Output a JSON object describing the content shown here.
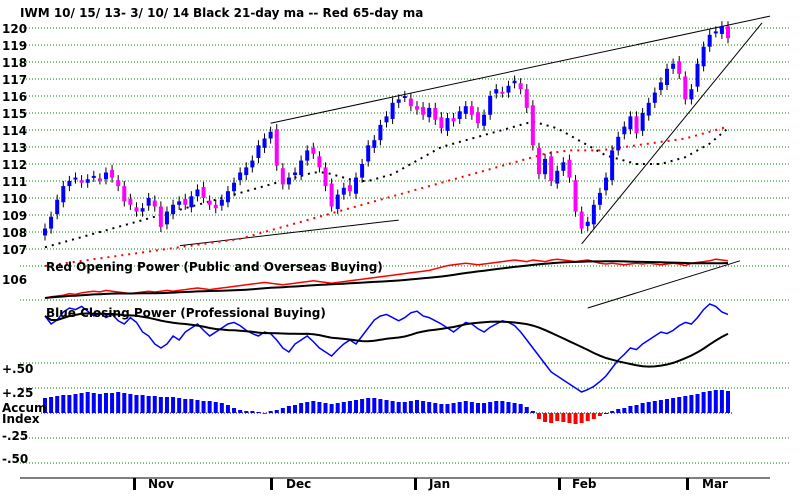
{
  "chart_data": {
    "type": "line",
    "title": "IWM   10/ 15/ 13- 3/ 10/ 14",
    "subtitle": "Black 21-day ma --  Red 65-day ma",
    "price_ticks": [
      "120",
      "119",
      "118",
      "117",
      "116",
      "115",
      "114",
      "113",
      "112",
      "111",
      "110",
      "109",
      "108",
      "107",
      "106"
    ],
    "price_ylim": [
      105.5,
      120.5
    ],
    "panel2_label": "Red Opening Power (Public and Overseas Buying)",
    "panel3_label": "Blue Closing Power (Professional Buying)",
    "accum_ticks": [
      "+.50",
      "+.25",
      "-.25",
      "-.50"
    ],
    "accum_label_1": "Accum",
    "accum_label_2": "Index",
    "months": [
      "Nov",
      "Dec",
      "Jan",
      "Feb",
      "Mar"
    ],
    "colors": {
      "up": "#0000ff",
      "down": "#ff00ff",
      "ma21": "#000000",
      "ma65": "#ff0000",
      "grid": "#008000",
      "accum_pos": "#0000ff",
      "accum_neg": "#ff0000"
    },
    "price_closes": [
      108.2,
      108.9,
      109.9,
      110.7,
      111.0,
      111.2,
      110.9,
      111.1,
      111.3,
      111.1,
      111.5,
      111.2,
      110.7,
      109.8,
      109.6,
      109.2,
      109.4,
      110.0,
      109.5,
      108.3,
      109.2,
      109.6,
      109.8,
      109.6,
      110.1,
      110.5,
      110.0,
      109.6,
      109.4,
      109.9,
      110.4,
      110.9,
      111.5,
      111.8,
      112.2,
      113.1,
      113.5,
      113.9,
      111.9,
      110.8,
      111.2,
      111.5,
      112.2,
      112.8,
      112.6,
      111.8,
      110.7,
      109.5,
      110.2,
      110.6,
      110.4,
      111.2,
      112.0,
      113.1,
      113.4,
      114.3,
      114.8,
      115.6,
      115.8,
      116.0,
      115.4,
      115.2,
      114.9,
      115.3,
      114.6,
      114.1,
      114.7,
      114.5,
      115.1,
      115.4,
      114.9,
      114.4,
      114.9,
      116.0,
      116.4,
      116.2,
      116.6,
      116.9,
      116.4,
      115.3,
      113.1,
      111.4,
      112.3,
      111.0,
      111.6,
      112.1,
      111.2,
      109.2,
      108.2,
      108.6,
      109.6,
      110.3,
      111.2,
      112.8,
      113.6,
      114.2,
      114.8,
      113.8,
      115.0,
      115.6,
      116.2,
      116.8,
      117.6,
      117.9,
      117.3,
      115.8,
      116.4,
      117.9,
      118.9,
      119.6,
      119.8,
      120.1,
      119.4
    ],
    "ma21": [
      107.1,
      107.2,
      107.3,
      107.4,
      107.5,
      107.6,
      107.7,
      107.8,
      107.9,
      108.0,
      108.1,
      108.2,
      108.3,
      108.4,
      108.5,
      108.6,
      108.7,
      108.8,
      108.9,
      109.0,
      109.1,
      109.2,
      109.3,
      109.4,
      109.5,
      109.6,
      109.7,
      109.8,
      109.9,
      110.0,
      110.1,
      110.2,
      110.3,
      110.4,
      110.5,
      110.6,
      110.7,
      110.8,
      110.9,
      111.0,
      111.1,
      111.2,
      111.3,
      111.4,
      111.5,
      111.5,
      111.5,
      111.4,
      111.3,
      111.2,
      111.1,
      111.0,
      111.0,
      111.0,
      111.1,
      111.2,
      111.3,
      111.4,
      111.6,
      111.8,
      112.0,
      112.2,
      112.4,
      112.6,
      112.8,
      113.0,
      113.1,
      113.2,
      113.3,
      113.4,
      113.5,
      113.6,
      113.7,
      113.8,
      113.9,
      114.0,
      114.1,
      114.2,
      114.3,
      114.4,
      114.5,
      114.4,
      114.3,
      114.2,
      114.1,
      113.9,
      113.7,
      113.5,
      113.3,
      113.1,
      112.9,
      112.7,
      112.5,
      112.4,
      112.3,
      112.2,
      112.1,
      112.0,
      112.0,
      112.0,
      112.0,
      112.0,
      112.1,
      112.2,
      112.3,
      112.4,
      112.6,
      112.8,
      113.0,
      113.2,
      113.5,
      113.8,
      114.1
    ],
    "ma65": [
      106.0,
      106.05,
      106.1,
      106.15,
      106.2,
      106.25,
      106.3,
      106.35,
      106.4,
      106.45,
      106.5,
      106.55,
      106.6,
      106.65,
      106.7,
      106.75,
      106.8,
      106.85,
      106.9,
      106.95,
      107.0,
      107.05,
      107.1,
      107.15,
      107.2,
      107.25,
      107.3,
      107.35,
      107.4,
      107.45,
      107.5,
      107.55,
      107.6,
      107.7,
      107.8,
      107.9,
      108.0,
      108.1,
      108.2,
      108.3,
      108.4,
      108.5,
      108.6,
      108.7,
      108.8,
      108.9,
      109.0,
      109.1,
      109.2,
      109.3,
      109.4,
      109.5,
      109.6,
      109.7,
      109.8,
      109.9,
      110.0,
      110.1,
      110.2,
      110.3,
      110.4,
      110.5,
      110.6,
      110.7,
      110.8,
      110.9,
      111.0,
      111.1,
      111.2,
      111.3,
      111.4,
      111.5,
      111.6,
      111.7,
      111.8,
      111.9,
      112.0,
      112.1,
      112.2,
      112.3,
      112.4,
      112.5,
      112.6,
      112.65,
      112.7,
      112.75,
      112.8,
      112.8,
      112.8,
      112.8,
      112.8,
      112.8,
      112.85,
      112.9,
      112.95,
      113.0,
      113.05,
      113.1,
      113.15,
      113.2,
      113.25,
      113.3,
      113.35,
      113.4,
      113.45,
      113.5,
      113.6,
      113.7,
      113.8,
      113.9,
      114.0,
      114.1,
      114.2
    ],
    "opening_power": [
      0.05,
      0.08,
      0.1,
      0.12,
      0.16,
      0.14,
      0.18,
      0.2,
      0.22,
      0.2,
      0.24,
      0.22,
      0.2,
      0.18,
      0.16,
      0.18,
      0.2,
      0.22,
      0.2,
      0.22,
      0.24,
      0.22,
      0.24,
      0.26,
      0.28,
      0.3,
      0.28,
      0.26,
      0.28,
      0.3,
      0.32,
      0.34,
      0.36,
      0.38,
      0.4,
      0.42,
      0.44,
      0.42,
      0.4,
      0.38,
      0.4,
      0.42,
      0.44,
      0.46,
      0.48,
      0.46,
      0.44,
      0.42,
      0.44,
      0.46,
      0.48,
      0.5,
      0.52,
      0.54,
      0.56,
      0.58,
      0.6,
      0.62,
      0.64,
      0.66,
      0.68,
      0.7,
      0.72,
      0.74,
      0.78,
      0.82,
      0.86,
      0.88,
      0.9,
      0.92,
      0.9,
      0.88,
      0.9,
      0.92,
      0.94,
      0.96,
      0.98,
      1.0,
      0.98,
      0.96,
      1.0,
      0.98,
      0.96,
      1.0,
      1.02,
      1.0,
      0.98,
      0.96,
      0.98,
      1.0,
      0.96,
      0.92,
      0.9,
      0.92,
      0.9,
      0.88,
      0.9,
      0.92,
      0.9,
      0.92,
      0.9,
      0.88,
      0.9,
      0.92,
      0.9,
      0.86,
      0.92,
      0.94,
      0.96,
      0.98,
      1.02,
      1.0,
      0.98
    ],
    "closing_power": [
      0.8,
      0.7,
      0.75,
      0.85,
      0.9,
      0.88,
      0.92,
      0.86,
      0.8,
      0.84,
      0.78,
      0.82,
      0.74,
      0.7,
      0.78,
      0.72,
      0.6,
      0.55,
      0.45,
      0.4,
      0.45,
      0.55,
      0.5,
      0.6,
      0.65,
      0.7,
      0.62,
      0.55,
      0.6,
      0.65,
      0.7,
      0.72,
      0.68,
      0.62,
      0.58,
      0.55,
      0.6,
      0.58,
      0.5,
      0.4,
      0.35,
      0.45,
      0.5,
      0.55,
      0.48,
      0.4,
      0.35,
      0.3,
      0.38,
      0.45,
      0.5,
      0.45,
      0.55,
      0.65,
      0.75,
      0.8,
      0.82,
      0.78,
      0.74,
      0.78,
      0.84,
      0.86,
      0.8,
      0.78,
      0.74,
      0.7,
      0.65,
      0.6,
      0.66,
      0.72,
      0.7,
      0.64,
      0.6,
      0.66,
      0.7,
      0.74,
      0.72,
      0.68,
      0.6,
      0.5,
      0.4,
      0.3,
      0.2,
      0.1,
      0.05,
      0.0,
      -0.05,
      -0.1,
      -0.15,
      -0.12,
      -0.08,
      -0.02,
      0.05,
      0.15,
      0.25,
      0.32,
      0.4,
      0.38,
      0.45,
      0.5,
      0.55,
      0.6,
      0.58,
      0.62,
      0.68,
      0.72,
      0.7,
      0.78,
      0.88,
      0.95,
      0.92,
      0.85,
      0.82
    ],
    "accum_index": [
      0.15,
      0.16,
      0.17,
      0.18,
      0.18,
      0.19,
      0.2,
      0.21,
      0.2,
      0.19,
      0.2,
      0.2,
      0.21,
      0.2,
      0.19,
      0.18,
      0.18,
      0.17,
      0.17,
      0.16,
      0.16,
      0.16,
      0.15,
      0.14,
      0.14,
      0.13,
      0.12,
      0.12,
      0.11,
      0.1,
      0.08,
      0.05,
      0.03,
      0.02,
      0.02,
      0.01,
      -0.01,
      0.02,
      0.03,
      0.05,
      0.07,
      0.08,
      0.1,
      0.11,
      0.12,
      0.11,
      0.1,
      0.09,
      0.1,
      0.11,
      0.12,
      0.13,
      0.14,
      0.15,
      0.15,
      0.14,
      0.13,
      0.12,
      0.11,
      0.11,
      0.12,
      0.13,
      0.12,
      0.11,
      0.1,
      0.09,
      0.09,
      0.1,
      0.11,
      0.12,
      0.11,
      0.1,
      0.1,
      0.11,
      0.12,
      0.12,
      0.11,
      0.1,
      0.09,
      0.06,
      0.02,
      -0.06,
      -0.09,
      -0.1,
      -0.08,
      -0.09,
      -0.1,
      -0.11,
      -0.1,
      -0.08,
      -0.06,
      -0.03,
      0.0,
      0.02,
      0.04,
      0.05,
      0.07,
      0.08,
      0.1,
      0.11,
      0.12,
      0.13,
      0.14,
      0.15,
      0.16,
      0.17,
      0.18,
      0.19,
      0.21,
      0.22,
      0.23,
      0.23,
      0.22
    ]
  }
}
